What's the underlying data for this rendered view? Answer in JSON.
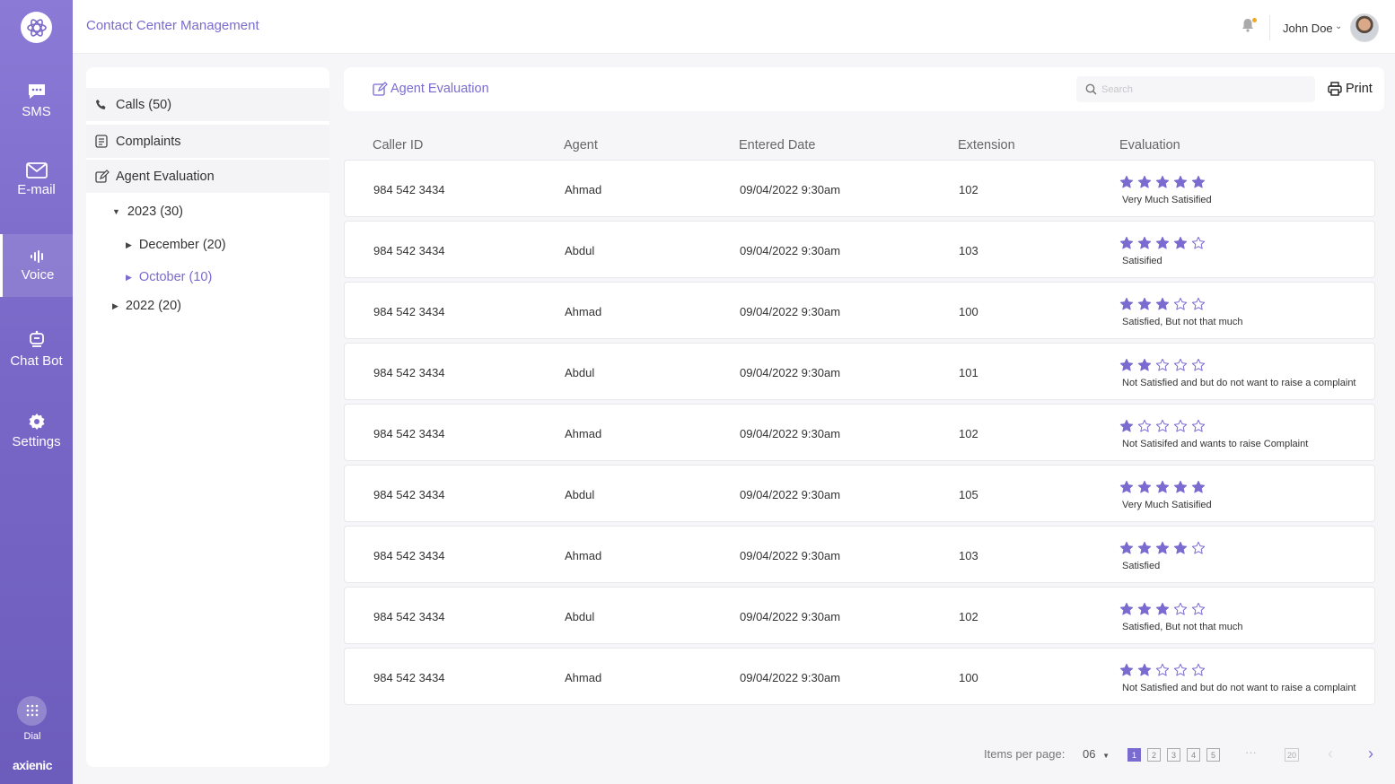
{
  "app": {
    "title": "Contact Center Management"
  },
  "user": {
    "name": "John Doe"
  },
  "rail": {
    "items": [
      {
        "label": "SMS"
      },
      {
        "label": "E-mail"
      },
      {
        "label": "Voice"
      },
      {
        "label": "Chat Bot"
      },
      {
        "label": "Settings"
      }
    ],
    "dial_label": "Dial",
    "brand": "axienic"
  },
  "side": {
    "calls": "Calls (50)",
    "complaints": "Complaints",
    "agent_evaluation": "Agent Evaluation",
    "tree": {
      "y2023": "2023 (30)",
      "december": "December (20)",
      "october": "October (10)",
      "y2022": "2022 (20)"
    }
  },
  "toolbar": {
    "title": "Agent Evaluation",
    "search_placeholder": "Search",
    "print_label": "Print"
  },
  "table": {
    "headers": [
      "Caller ID",
      "Agent",
      "Entered Date",
      "Extension",
      "Evaluation"
    ],
    "rows": [
      {
        "caller_id": "984 542 3434",
        "agent": "Ahmad",
        "date": "09/04/2022 9:30am",
        "extension": "102",
        "rating": 5,
        "evaluation": "Very Much Satisified"
      },
      {
        "caller_id": "984 542 3434",
        "agent": "Abdul",
        "date": "09/04/2022 9:30am",
        "extension": "103",
        "rating": 4,
        "evaluation": "Satisified"
      },
      {
        "caller_id": "984 542 3434",
        "agent": "Ahmad",
        "date": "09/04/2022 9:30am",
        "extension": "100",
        "rating": 3,
        "evaluation": "Satisfied, But not that much"
      },
      {
        "caller_id": "984 542 3434",
        "agent": "Abdul",
        "date": "09/04/2022 9:30am",
        "extension": "101",
        "rating": 2,
        "evaluation": "Not Satisfied and but do not want to raise a complaint"
      },
      {
        "caller_id": "984 542 3434",
        "agent": "Ahmad",
        "date": "09/04/2022 9:30am",
        "extension": "102",
        "rating": 1,
        "evaluation": "Not Satisifed and wants to raise Complaint"
      },
      {
        "caller_id": "984 542 3434",
        "agent": "Abdul",
        "date": "09/04/2022 9:30am",
        "extension": "105",
        "rating": 5,
        "evaluation": "Very Much Satisified"
      },
      {
        "caller_id": "984 542 3434",
        "agent": "Ahmad",
        "date": "09/04/2022 9:30am",
        "extension": "103",
        "rating": 4,
        "evaluation": "Satisfied"
      },
      {
        "caller_id": "984 542 3434",
        "agent": "Abdul",
        "date": "09/04/2022 9:30am",
        "extension": "102",
        "rating": 3,
        "evaluation": "Satisfied, But not that much"
      },
      {
        "caller_id": "984 542 3434",
        "agent": "Ahmad",
        "date": "09/04/2022 9:30am",
        "extension": "100",
        "rating": 2,
        "evaluation": "Not Satisfied and but do not want to raise a complaint"
      }
    ]
  },
  "pagination": {
    "items_per_page_label": "Items per page:",
    "items_per_page_value": "06",
    "pages": [
      "1",
      "2",
      "3",
      "4",
      "5"
    ],
    "ellipsis": "···",
    "last_page": "20",
    "prev": "‹",
    "next": "›"
  },
  "colors": {
    "accent": "#7a6bd0",
    "rail": "#7a68c8",
    "star": "#7a6bd0"
  }
}
